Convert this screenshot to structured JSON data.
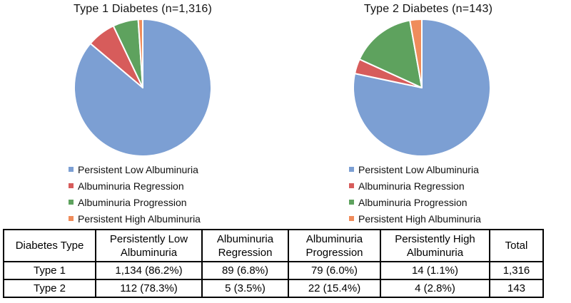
{
  "figure": {
    "background": "#ffffff"
  },
  "palette": {
    "blue": "#7C9FD3",
    "red": "#D75C5B",
    "green": "#5EA25E",
    "orange": "#EF8C5B"
  },
  "chart_data": [
    {
      "type": "pie",
      "title": "Type 1 Diabetes (n=1,316)",
      "n_total": "1,316",
      "labels": [
        "Persistent Low Albuminuria",
        "Albuminuria Regression",
        "Albuminuria Progression",
        "Persistent High Albuminuria"
      ],
      "values": [
        1134,
        89,
        79,
        14
      ],
      "percent_labels": [
        "86.2%",
        "6.8%",
        "6.0%",
        "1.1%"
      ],
      "colors": [
        "#7C9FD3",
        "#D75C5B",
        "#5EA25E",
        "#EF8C5B"
      ],
      "start_angle_deg": 0,
      "direction": "clockwise",
      "legend_position": "bottom-left"
    },
    {
      "type": "pie",
      "title": "Type 2 Diabetes (n=143)",
      "n_total": "143",
      "labels": [
        "Persistent Low Albuminuria",
        "Albuminuria Regression",
        "Albuminuria Progression",
        "Persistent High Albuminuria"
      ],
      "values": [
        112,
        5,
        22,
        4
      ],
      "percent_labels": [
        "78.3%",
        "3.5%",
        "15.4%",
        "2.8%"
      ],
      "colors": [
        "#7C9FD3",
        "#D75C5B",
        "#5EA25E",
        "#EF8C5B"
      ],
      "start_angle_deg": 0,
      "direction": "clockwise",
      "legend_position": "bottom-left"
    },
    {
      "type": "table",
      "columns": [
        "Diabetes Type",
        "Persistently Low\nAlbuminuria",
        "Albuminuria\nRegression",
        "Albuminuria\nProgression",
        "Persistently High\nAlbuminuria",
        "Total"
      ],
      "rows": [
        [
          "Type 1",
          "1,134 (86.2%)",
          "89 (6.8%)",
          "79 (6.0%)",
          "14 (1.1%)",
          "1,316"
        ],
        [
          "Type 2",
          "112 (78.3%)",
          "5 (3.5%)",
          "22 (15.4%)",
          "4 (2.8%)",
          "143"
        ]
      ]
    }
  ]
}
